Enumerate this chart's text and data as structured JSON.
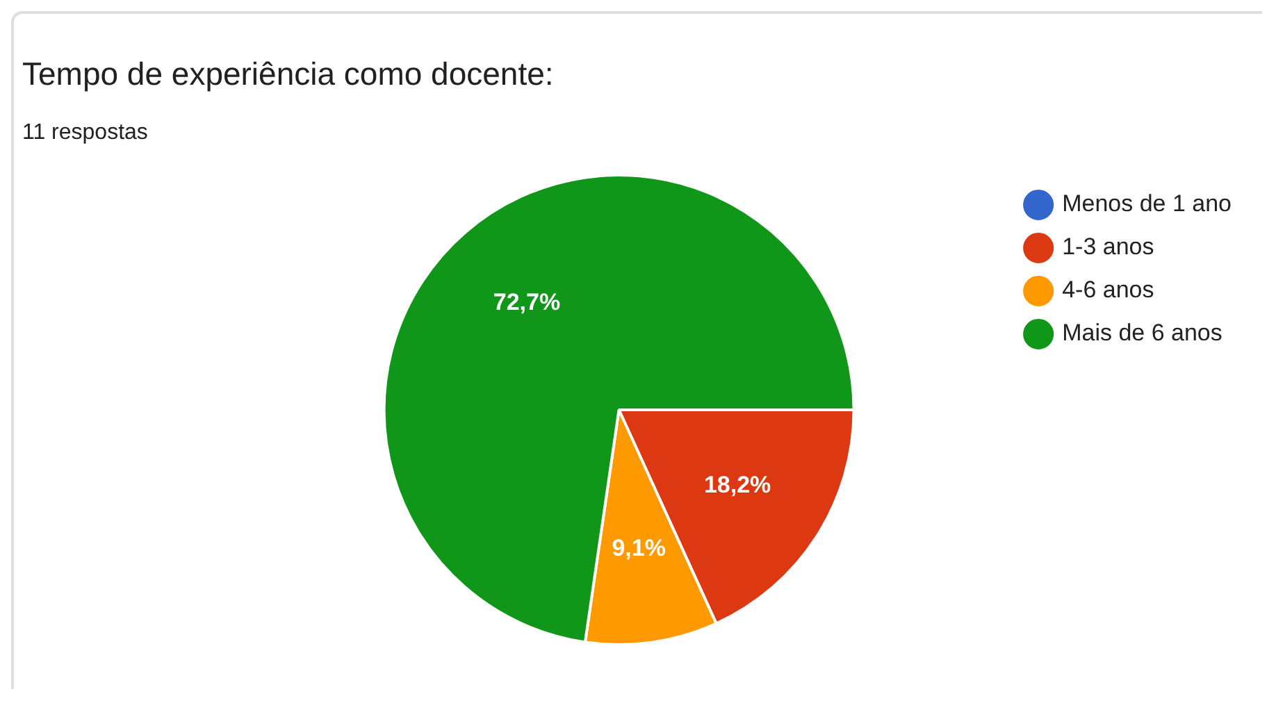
{
  "chart_data": {
    "type": "pie",
    "title": "Tempo de experiência como docente:",
    "subtitle": "11 respostas",
    "categories": [
      "Menos de 1 ano",
      "1-3 anos",
      "4-6 anos",
      "Mais de 6 anos"
    ],
    "values": [
      0,
      18.2,
      9.1,
      72.7
    ],
    "colors": [
      "#3366cc",
      "#dc3912",
      "#ff9900",
      "#109618"
    ],
    "value_labels": [
      null,
      "18,2%",
      "9,1%",
      "72,7%"
    ],
    "legend": "top right"
  }
}
